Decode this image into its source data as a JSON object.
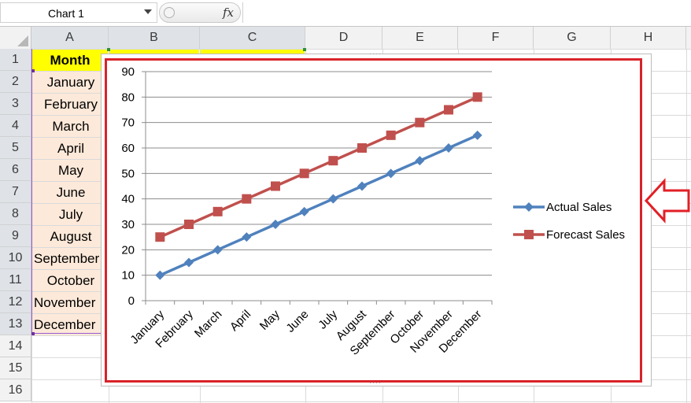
{
  "formula_bar": {
    "name_box": "Chart 1",
    "fx_label": "fx",
    "formula": ""
  },
  "columns": [
    "A",
    "B",
    "C",
    "D",
    "E",
    "F",
    "G",
    "H"
  ],
  "rows": [
    "1",
    "2",
    "3",
    "4",
    "5",
    "6",
    "7",
    "8",
    "9",
    "10",
    "11",
    "12",
    "13",
    "14",
    "15",
    "16"
  ],
  "sheet": {
    "header_month": "Month",
    "months": [
      "January",
      "February",
      "March",
      "April",
      "May",
      "June",
      "July",
      "August",
      "September",
      "October",
      "November",
      "December"
    ]
  },
  "colors": {
    "actual": "#4f81bd",
    "forecast": "#c0504d",
    "header_fill": "#ffff00",
    "month_fill": "#fde9d9",
    "highlight_border": "#d8232a"
  },
  "chart_data": {
    "type": "line",
    "categories": [
      "January",
      "February",
      "March",
      "April",
      "May",
      "June",
      "July",
      "August",
      "September",
      "October",
      "November",
      "December"
    ],
    "series": [
      {
        "name": "Actual Sales",
        "values": [
          10,
          15,
          20,
          25,
          30,
          35,
          40,
          45,
          50,
          55,
          60,
          65
        ]
      },
      {
        "name": "Forecast Sales",
        "values": [
          25,
          30,
          35,
          40,
          45,
          50,
          55,
          60,
          65,
          70,
          75,
          80
        ]
      }
    ],
    "ylim": [
      0,
      90
    ],
    "yticks": [
      "0",
      "10",
      "20",
      "30",
      "40",
      "50",
      "60",
      "70",
      "80",
      "90"
    ],
    "grid": true,
    "legend_position": "right"
  }
}
